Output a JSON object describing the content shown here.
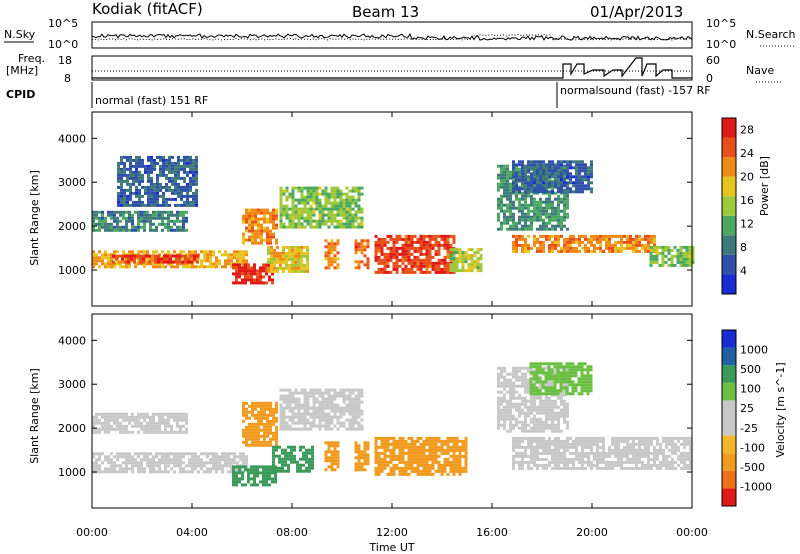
{
  "header": {
    "station": "Kodiak (fitACF)",
    "beam": "Beam 13",
    "date": "01/Apr/2013"
  },
  "strip": {
    "nsky_label": "N.Sky",
    "nsearch_label": "N.Search",
    "noise_ticks": [
      "10^5",
      "10^0"
    ],
    "freq_label_1": "Freq.",
    "freq_label_2": "[MHz]",
    "freq_ticks": [
      "18",
      "8"
    ],
    "nave_label": "Nave",
    "nave_ticks": [
      "60",
      "0"
    ],
    "cpid_label": "CPID",
    "cpid_segments": [
      {
        "name": "normal (fast) 151 RF",
        "start_hour": 0.0,
        "end_hour": 18.7
      },
      {
        "name": "normalsound (fast) -157 RF",
        "start_hour": 18.7,
        "end_hour": 24.0
      }
    ]
  },
  "colors": {
    "power_scale": [
      "#1a2bd6",
      "#2f50a8",
      "#3f7a7a",
      "#4aa860",
      "#9cc83a",
      "#e8c41e",
      "#f08a14",
      "#e8501a",
      "#e01818"
    ],
    "velocity_scale": [
      "#e01818",
      "#f0701a",
      "#f09a1e",
      "#f2b82a",
      "#c8c8c8",
      "#c8c8c8",
      "#6ac040",
      "#3a9a5a",
      "#2060a0",
      "#1a2bd6"
    ]
  },
  "chart_data": [
    {
      "type": "heatmap",
      "name": "power",
      "ylabel": "Slant Range [km]",
      "yticks": [
        1000,
        2000,
        3000,
        4000
      ],
      "ylim": [
        180,
        4600
      ],
      "xlim": [
        0,
        24
      ],
      "colorbar_label": "Power [dB]",
      "colorbar_ticks": [
        4,
        8,
        12,
        16,
        20,
        24,
        28
      ],
      "colorbar_range": [
        0,
        30
      ],
      "regions": [
        {
          "t0": 0.0,
          "t1": 6.2,
          "r0": 1050,
          "r1": 1450,
          "level": 20
        },
        {
          "t0": 0.8,
          "t1": 4.2,
          "r0": 1150,
          "r1": 1350,
          "level": 26
        },
        {
          "t0": 0.0,
          "t1": 3.8,
          "r0": 1900,
          "r1": 2350,
          "level": 9
        },
        {
          "t0": 1.0,
          "t1": 4.2,
          "r0": 2450,
          "r1": 3600,
          "level": 6
        },
        {
          "t0": 5.6,
          "t1": 7.2,
          "r0": 700,
          "r1": 1150,
          "level": 28
        },
        {
          "t0": 6.0,
          "t1": 7.4,
          "r0": 1600,
          "r1": 2400,
          "level": 22
        },
        {
          "t0": 7.0,
          "t1": 8.6,
          "r0": 1000,
          "r1": 1550,
          "level": 18
        },
        {
          "t0": 7.5,
          "t1": 10.8,
          "r0": 2000,
          "r1": 2900,
          "level": 14
        },
        {
          "t0": 9.3,
          "t1": 9.8,
          "r0": 1050,
          "r1": 1700,
          "level": 22
        },
        {
          "t0": 10.5,
          "t1": 11.0,
          "r0": 1050,
          "r1": 1700,
          "level": 24
        },
        {
          "t0": 11.3,
          "t1": 14.5,
          "r0": 950,
          "r1": 1800,
          "level": 26
        },
        {
          "t0": 14.3,
          "t1": 15.6,
          "r0": 1000,
          "r1": 1500,
          "level": 16
        },
        {
          "t0": 16.2,
          "t1": 19.0,
          "r0": 1900,
          "r1": 3400,
          "level": 10
        },
        {
          "t0": 16.8,
          "t1": 22.5,
          "r0": 1400,
          "r1": 1800,
          "level": 22
        },
        {
          "t0": 22.3,
          "t1": 24.0,
          "r0": 1100,
          "r1": 1550,
          "level": 14
        },
        {
          "t0": 16.8,
          "t1": 20.0,
          "r0": 2800,
          "r1": 3500,
          "level": 6
        }
      ]
    },
    {
      "type": "heatmap",
      "name": "velocity",
      "xlabel": "Time UT",
      "ylabel": "Slant Range [km]",
      "xticks": [
        "00:00",
        "04:00",
        "08:00",
        "12:00",
        "16:00",
        "20:00",
        "00:00"
      ],
      "yticks": [
        1000,
        2000,
        3000,
        4000
      ],
      "ylim": [
        180,
        4600
      ],
      "xlim": [
        0,
        24
      ],
      "colorbar_label": "Velocity [m s^-1]",
      "colorbar_ticks": [
        "1000",
        "500",
        "100",
        "25",
        "-25",
        "-100",
        "-500",
        "-1000"
      ],
      "regions": [
        {
          "t0": 0.0,
          "t1": 6.2,
          "r0": 1000,
          "r1": 1450,
          "level": 0
        },
        {
          "t0": 0.0,
          "t1": 3.8,
          "r0": 1900,
          "r1": 2350,
          "level": 0
        },
        {
          "t0": 5.6,
          "t1": 7.4,
          "r0": 700,
          "r1": 1150,
          "level": 200
        },
        {
          "t0": 6.0,
          "t1": 7.4,
          "r0": 1600,
          "r1": 2600,
          "level": -300
        },
        {
          "t0": 7.2,
          "t1": 8.8,
          "r0": 1000,
          "r1": 1600,
          "level": 300
        },
        {
          "t0": 7.5,
          "t1": 10.8,
          "r0": 2000,
          "r1": 2900,
          "level": 0
        },
        {
          "t0": 9.3,
          "t1": 9.8,
          "r0": 1050,
          "r1": 1700,
          "level": -300
        },
        {
          "t0": 10.5,
          "t1": 11.0,
          "r0": 1050,
          "r1": 1700,
          "level": -300
        },
        {
          "t0": 11.3,
          "t1": 15.0,
          "r0": 950,
          "r1": 1800,
          "level": -150
        },
        {
          "t0": 16.2,
          "t1": 19.0,
          "r0": 1900,
          "r1": 3400,
          "level": 0
        },
        {
          "t0": 16.8,
          "t1": 24.0,
          "r0": 1100,
          "r1": 1800,
          "level": 0
        },
        {
          "t0": 17.5,
          "t1": 20.0,
          "r0": 2800,
          "r1": 3500,
          "level": 60
        }
      ]
    }
  ]
}
